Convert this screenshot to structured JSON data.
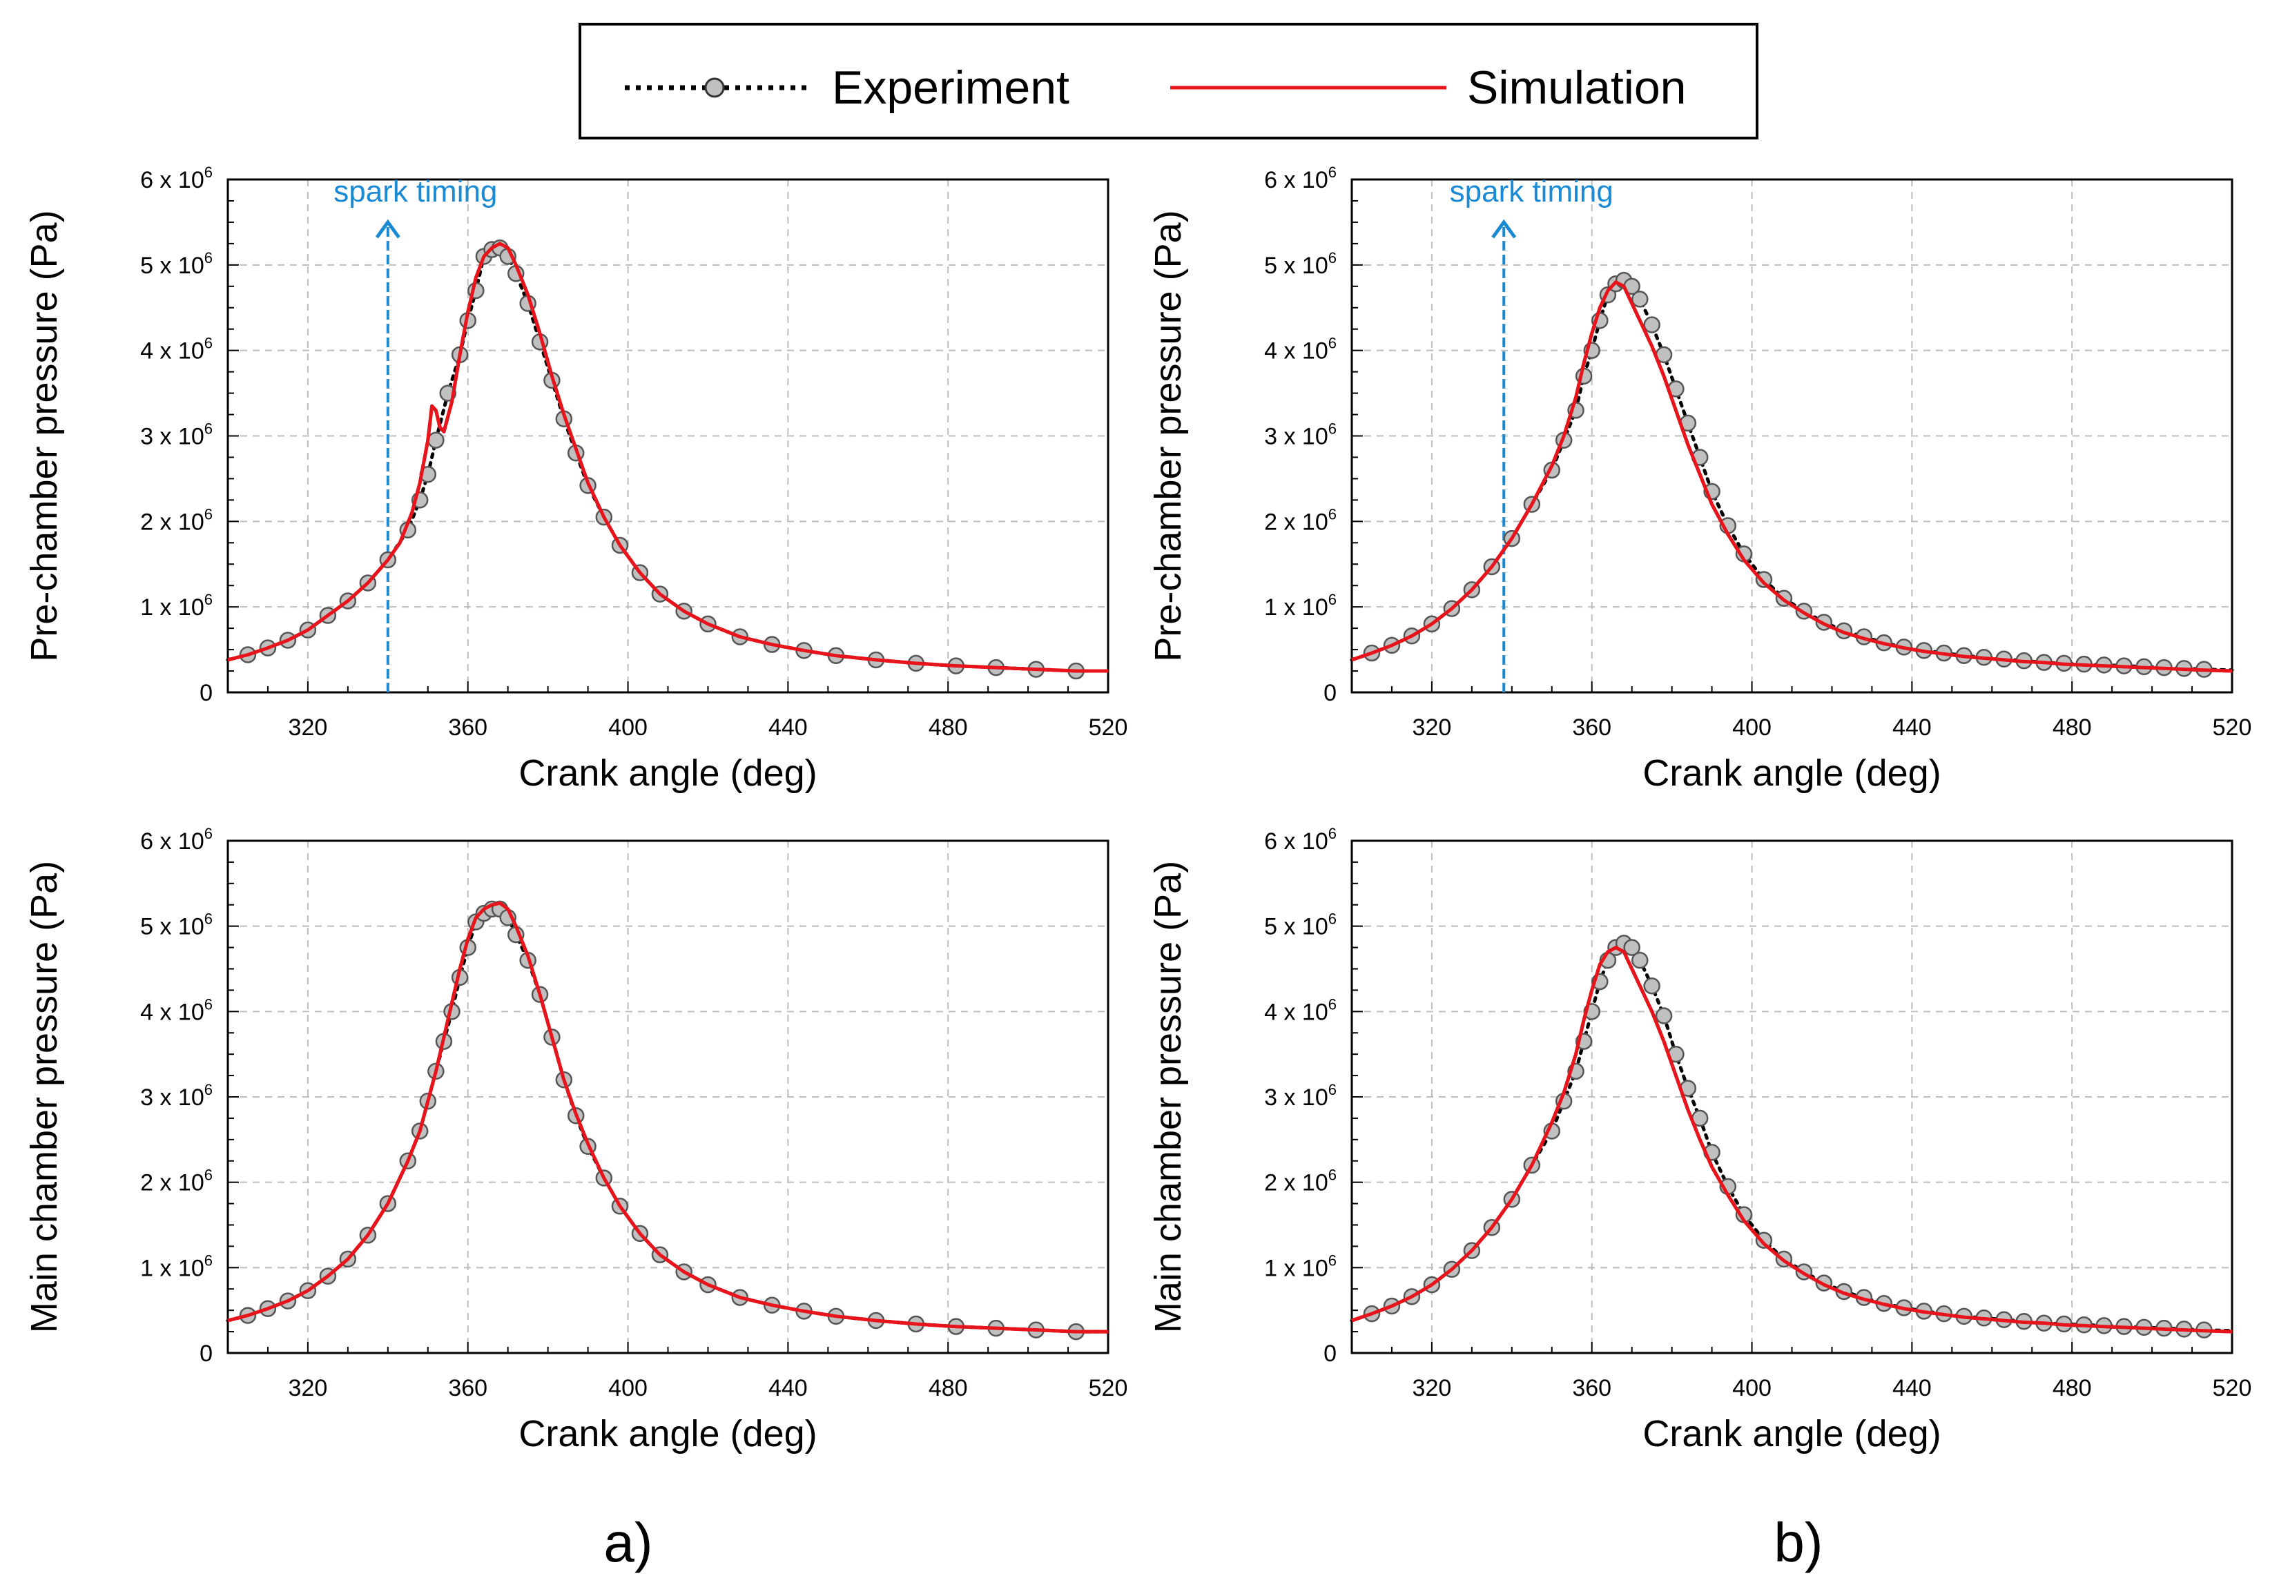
{
  "legend": {
    "experiment_label": "Experiment",
    "simulation_label": "Simulation",
    "experiment_color": "#000000",
    "marker_fill": "#c0c0c0",
    "simulation_color": "#e8141c"
  },
  "panel_labels": {
    "a": "a)",
    "b": "b)"
  },
  "annotation": {
    "spark_label": "spark timing",
    "color": "#1a8ad4"
  },
  "chart_data": [
    {
      "id": "a-top",
      "type": "line",
      "xlabel": "Crank angle (deg)",
      "ylabel": "Pre-chamber pressure (Pa)",
      "xlim": [
        300,
        520
      ],
      "ylim": [
        0,
        6
      ],
      "y_multiplier_text": "x 10",
      "y_exponent": "6",
      "xticks": [
        320,
        360,
        400,
        440,
        480,
        520
      ],
      "yticks": [
        0,
        1,
        2,
        3,
        4,
        5,
        6
      ],
      "grid": true,
      "spark_timing": 340,
      "series": [
        {
          "name": "Experiment",
          "style": "dotted-with-markers",
          "x": [
            300,
            305,
            310,
            315,
            320,
            325,
            330,
            335,
            340,
            345,
            348,
            350,
            352,
            355,
            358,
            360,
            362,
            364,
            366,
            368,
            370,
            372,
            375,
            378,
            381,
            384,
            387,
            390,
            394,
            398,
            403,
            408,
            414,
            420,
            428,
            436,
            444,
            452,
            462,
            472,
            482,
            492,
            502,
            512,
            520
          ],
          "y": [
            0.38,
            0.44,
            0.52,
            0.61,
            0.73,
            0.9,
            1.07,
            1.28,
            1.55,
            1.9,
            2.25,
            2.55,
            2.95,
            3.5,
            3.95,
            4.35,
            4.7,
            5.1,
            5.18,
            5.2,
            5.1,
            4.9,
            4.55,
            4.1,
            3.65,
            3.2,
            2.8,
            2.42,
            2.05,
            1.72,
            1.4,
            1.15,
            0.95,
            0.8,
            0.65,
            0.56,
            0.49,
            0.43,
            0.38,
            0.34,
            0.31,
            0.29,
            0.27,
            0.25,
            0.25
          ]
        },
        {
          "name": "Simulation",
          "style": "solid",
          "x": [
            300,
            305,
            310,
            315,
            320,
            325,
            330,
            335,
            340,
            343,
            346,
            348,
            350,
            351,
            352,
            353,
            354,
            356,
            358,
            360,
            362,
            364,
            366,
            368,
            370,
            372,
            375,
            378,
            381,
            384,
            387,
            390,
            394,
            398,
            403,
            408,
            414,
            420,
            428,
            436,
            444,
            452,
            462,
            472,
            482,
            492,
            502,
            512,
            520
          ],
          "y": [
            0.38,
            0.44,
            0.52,
            0.61,
            0.73,
            0.9,
            1.07,
            1.28,
            1.55,
            1.75,
            2.1,
            2.45,
            2.95,
            3.35,
            3.3,
            3.1,
            3.05,
            3.4,
            3.95,
            4.45,
            4.85,
            5.1,
            5.2,
            5.25,
            5.2,
            5.0,
            4.65,
            4.2,
            3.7,
            3.25,
            2.85,
            2.45,
            2.05,
            1.72,
            1.4,
            1.15,
            0.95,
            0.8,
            0.65,
            0.56,
            0.49,
            0.43,
            0.38,
            0.34,
            0.31,
            0.29,
            0.27,
            0.25,
            0.25
          ]
        }
      ]
    },
    {
      "id": "a-bottom",
      "type": "line",
      "xlabel": "Crank angle (deg)",
      "ylabel": "Main chamber pressure (Pa)",
      "xlim": [
        300,
        520
      ],
      "ylim": [
        0,
        6
      ],
      "y_multiplier_text": "x 10",
      "y_exponent": "6",
      "xticks": [
        320,
        360,
        400,
        440,
        480,
        520
      ],
      "yticks": [
        0,
        1,
        2,
        3,
        4,
        5,
        6
      ],
      "grid": true,
      "series": [
        {
          "name": "Experiment",
          "style": "dotted-with-markers",
          "x": [
            300,
            305,
            310,
            315,
            320,
            325,
            330,
            335,
            340,
            345,
            348,
            350,
            352,
            354,
            356,
            358,
            360,
            362,
            364,
            366,
            368,
            370,
            372,
            375,
            378,
            381,
            384,
            387,
            390,
            394,
            398,
            403,
            408,
            414,
            420,
            428,
            436,
            444,
            452,
            462,
            472,
            482,
            492,
            502,
            512,
            520
          ],
          "y": [
            0.38,
            0.44,
            0.52,
            0.61,
            0.73,
            0.9,
            1.1,
            1.38,
            1.75,
            2.25,
            2.6,
            2.95,
            3.3,
            3.65,
            4.0,
            4.4,
            4.75,
            5.05,
            5.15,
            5.2,
            5.2,
            5.1,
            4.9,
            4.6,
            4.2,
            3.7,
            3.2,
            2.78,
            2.42,
            2.05,
            1.72,
            1.4,
            1.15,
            0.95,
            0.8,
            0.65,
            0.56,
            0.49,
            0.43,
            0.38,
            0.34,
            0.31,
            0.29,
            0.27,
            0.25,
            0.25
          ]
        },
        {
          "name": "Simulation",
          "style": "solid",
          "x": [
            300,
            305,
            310,
            315,
            320,
            325,
            330,
            335,
            340,
            345,
            348,
            350,
            352,
            354,
            356,
            358,
            360,
            362,
            364,
            366,
            368,
            370,
            372,
            375,
            378,
            381,
            384,
            387,
            390,
            394,
            398,
            403,
            408,
            414,
            420,
            428,
            436,
            444,
            452,
            462,
            472,
            482,
            492,
            502,
            512,
            520
          ],
          "y": [
            0.38,
            0.44,
            0.52,
            0.61,
            0.73,
            0.9,
            1.1,
            1.38,
            1.75,
            2.25,
            2.6,
            2.95,
            3.3,
            3.7,
            4.1,
            4.5,
            4.85,
            5.1,
            5.2,
            5.25,
            5.27,
            5.2,
            5.0,
            4.65,
            4.2,
            3.7,
            3.2,
            2.8,
            2.45,
            2.05,
            1.72,
            1.4,
            1.15,
            0.95,
            0.8,
            0.65,
            0.56,
            0.49,
            0.43,
            0.38,
            0.34,
            0.31,
            0.29,
            0.27,
            0.25,
            0.25
          ]
        }
      ]
    },
    {
      "id": "b-top",
      "type": "line",
      "xlabel": "Crank angle (deg)",
      "ylabel": "Pre-chamber pressure (Pa)",
      "xlim": [
        300,
        520
      ],
      "ylim": [
        0,
        6
      ],
      "y_multiplier_text": "x 10",
      "y_exponent": "6",
      "xticks": [
        320,
        360,
        400,
        440,
        480,
        520
      ],
      "yticks": [
        0,
        1,
        2,
        3,
        4,
        5,
        6
      ],
      "grid": true,
      "spark_timing": 338,
      "series": [
        {
          "name": "Experiment",
          "style": "dotted-with-markers",
          "x": [
            300,
            305,
            310,
            315,
            320,
            325,
            330,
            335,
            340,
            345,
            350,
            353,
            356,
            358,
            360,
            362,
            364,
            366,
            368,
            370,
            372,
            375,
            378,
            381,
            384,
            387,
            390,
            394,
            398,
            403,
            408,
            413,
            418,
            423,
            428,
            433,
            438,
            443,
            448,
            453,
            458,
            463,
            468,
            473,
            478,
            483,
            488,
            493,
            498,
            503,
            508,
            513,
            520
          ],
          "y": [
            0.38,
            0.46,
            0.55,
            0.66,
            0.8,
            0.98,
            1.2,
            1.47,
            1.8,
            2.2,
            2.6,
            2.95,
            3.3,
            3.7,
            4.0,
            4.35,
            4.65,
            4.78,
            4.82,
            4.75,
            4.6,
            4.3,
            3.95,
            3.55,
            3.15,
            2.75,
            2.35,
            1.95,
            1.62,
            1.32,
            1.1,
            0.95,
            0.82,
            0.72,
            0.65,
            0.58,
            0.53,
            0.49,
            0.46,
            0.43,
            0.41,
            0.39,
            0.37,
            0.35,
            0.34,
            0.33,
            0.32,
            0.31,
            0.3,
            0.29,
            0.28,
            0.27,
            0.26
          ]
        },
        {
          "name": "Simulation",
          "style": "solid",
          "x": [
            300,
            305,
            310,
            315,
            320,
            325,
            330,
            335,
            340,
            345,
            350,
            353,
            356,
            358,
            360,
            362,
            364,
            366,
            368,
            370,
            372,
            375,
            378,
            381,
            384,
            387,
            390,
            394,
            398,
            403,
            408,
            413,
            418,
            423,
            428,
            433,
            438,
            443,
            448,
            453,
            458,
            463,
            468,
            473,
            478,
            483,
            488,
            493,
            498,
            503,
            508,
            513,
            520
          ],
          "y": [
            0.38,
            0.46,
            0.55,
            0.66,
            0.8,
            0.98,
            1.2,
            1.47,
            1.8,
            2.2,
            2.65,
            3.0,
            3.45,
            3.85,
            4.2,
            4.5,
            4.7,
            4.8,
            4.75,
            4.55,
            4.35,
            4.05,
            3.7,
            3.3,
            2.9,
            2.55,
            2.2,
            1.85,
            1.55,
            1.28,
            1.08,
            0.93,
            0.8,
            0.7,
            0.63,
            0.57,
            0.52,
            0.48,
            0.45,
            0.42,
            0.4,
            0.38,
            0.36,
            0.35,
            0.33,
            0.32,
            0.31,
            0.3,
            0.29,
            0.28,
            0.27,
            0.26,
            0.25
          ]
        }
      ]
    },
    {
      "id": "b-bottom",
      "type": "line",
      "xlabel": "Crank angle (deg)",
      "ylabel": "Main chamber pressure (Pa)",
      "xlim": [
        300,
        520
      ],
      "ylim": [
        0,
        6
      ],
      "y_multiplier_text": "x 10",
      "y_exponent": "6",
      "xticks": [
        320,
        360,
        400,
        440,
        480,
        520
      ],
      "yticks": [
        0,
        1,
        2,
        3,
        4,
        5,
        6
      ],
      "grid": true,
      "series": [
        {
          "name": "Experiment",
          "style": "dotted-with-markers",
          "x": [
            300,
            305,
            310,
            315,
            320,
            325,
            330,
            335,
            340,
            345,
            350,
            353,
            356,
            358,
            360,
            362,
            364,
            366,
            368,
            370,
            372,
            375,
            378,
            381,
            384,
            387,
            390,
            394,
            398,
            403,
            408,
            413,
            418,
            423,
            428,
            433,
            438,
            443,
            448,
            453,
            458,
            463,
            468,
            473,
            478,
            483,
            488,
            493,
            498,
            503,
            508,
            513,
            520
          ],
          "y": [
            0.38,
            0.46,
            0.55,
            0.66,
            0.8,
            0.98,
            1.2,
            1.47,
            1.8,
            2.2,
            2.6,
            2.95,
            3.3,
            3.65,
            4.0,
            4.35,
            4.6,
            4.75,
            4.8,
            4.75,
            4.6,
            4.3,
            3.95,
            3.5,
            3.1,
            2.75,
            2.35,
            1.95,
            1.62,
            1.32,
            1.1,
            0.95,
            0.82,
            0.72,
            0.65,
            0.58,
            0.53,
            0.49,
            0.46,
            0.43,
            0.41,
            0.39,
            0.37,
            0.35,
            0.34,
            0.33,
            0.32,
            0.31,
            0.3,
            0.29,
            0.28,
            0.27,
            0.26
          ]
        },
        {
          "name": "Simulation",
          "style": "solid",
          "x": [
            300,
            305,
            310,
            315,
            320,
            325,
            330,
            335,
            340,
            345,
            350,
            353,
            356,
            358,
            360,
            362,
            364,
            366,
            368,
            370,
            372,
            375,
            378,
            381,
            384,
            387,
            390,
            394,
            398,
            403,
            408,
            413,
            418,
            423,
            428,
            433,
            438,
            443,
            448,
            453,
            458,
            463,
            468,
            473,
            478,
            483,
            488,
            493,
            498,
            503,
            508,
            513,
            520
          ],
          "y": [
            0.38,
            0.46,
            0.55,
            0.66,
            0.8,
            0.98,
            1.2,
            1.47,
            1.8,
            2.2,
            2.7,
            3.05,
            3.5,
            3.9,
            4.25,
            4.55,
            4.7,
            4.75,
            4.7,
            4.5,
            4.3,
            4.0,
            3.65,
            3.25,
            2.85,
            2.5,
            2.18,
            1.85,
            1.55,
            1.28,
            1.08,
            0.93,
            0.8,
            0.7,
            0.63,
            0.57,
            0.52,
            0.48,
            0.45,
            0.42,
            0.4,
            0.38,
            0.36,
            0.35,
            0.33,
            0.32,
            0.31,
            0.3,
            0.29,
            0.28,
            0.27,
            0.26,
            0.25
          ]
        }
      ]
    }
  ]
}
